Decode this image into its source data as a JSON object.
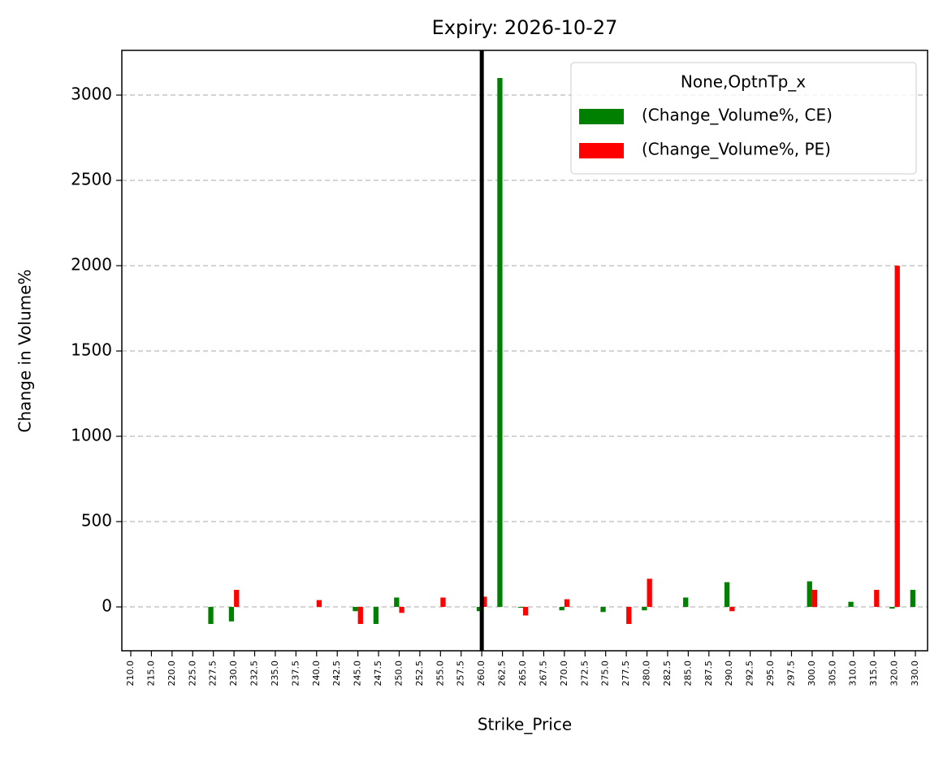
{
  "chart_data": {
    "type": "bar",
    "title": "Expiry: 2026-10-27",
    "x_label": "Strike_Price",
    "y_label": "Change in Volume%",
    "categories": [
      "210.0",
      "215.0",
      "220.0",
      "225.0",
      "227.5",
      "230.0",
      "232.5",
      "235.0",
      "237.5",
      "240.0",
      "242.5",
      "245.0",
      "247.5",
      "250.0",
      "252.5",
      "255.0",
      "257.5",
      "260.0",
      "262.5",
      "265.0",
      "267.5",
      "270.0",
      "272.5",
      "275.0",
      "277.5",
      "280.0",
      "282.5",
      "285.0",
      "287.5",
      "290.0",
      "292.5",
      "295.0",
      "297.5",
      "300.0",
      "305.0",
      "310.0",
      "315.0",
      "320.0",
      "330.0"
    ],
    "series": [
      {
        "name": "(Change_Volume%, CE)",
        "color": "#008000",
        "values": [
          null,
          null,
          null,
          null,
          -100,
          -85,
          null,
          null,
          null,
          null,
          null,
          -25,
          -100,
          55,
          null,
          null,
          null,
          -25,
          3100,
          -5,
          null,
          -20,
          null,
          -30,
          null,
          -20,
          null,
          55,
          null,
          145,
          null,
          null,
          null,
          150,
          null,
          30,
          null,
          -10,
          100
        ]
      },
      {
        "name": "(Change_Volume%, PE)",
        "color": "#ff0000",
        "values": [
          null,
          null,
          null,
          null,
          null,
          100,
          null,
          null,
          null,
          40,
          null,
          -100,
          null,
          -35,
          null,
          55,
          null,
          60,
          null,
          -50,
          null,
          45,
          null,
          null,
          -100,
          165,
          null,
          null,
          null,
          -25,
          null,
          null,
          null,
          100,
          null,
          null,
          100,
          2000,
          null
        ]
      }
    ],
    "legend_title": "None,OptnTp_x",
    "legend": "upper right",
    "ylim": [
      -257,
      3262
    ],
    "yticks": [
      0,
      500,
      1000,
      1500,
      2000,
      2500,
      3000
    ],
    "grid": true,
    "vline": "260.0",
    "vline_color": "#000000"
  }
}
